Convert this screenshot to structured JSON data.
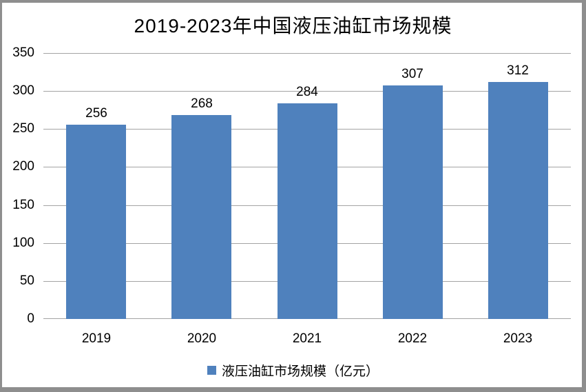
{
  "title": "2019-2023年中国液压油缸市场规模",
  "legend": {
    "label": "液压油缸市场规模（亿元）"
  },
  "colors": {
    "bar": "#4F81BD",
    "gridline": "#a3a3a3",
    "frame": "#8e8e8e",
    "text": "#000000",
    "background": "#ffffff"
  },
  "chart_data": {
    "type": "bar",
    "title": "2019-2023年中国液压油缸市场规模",
    "categories": [
      "2019",
      "2020",
      "2021",
      "2022",
      "2023"
    ],
    "series": [
      {
        "name": "液压油缸市场规模（亿元）",
        "values": [
          256,
          268,
          284,
          307,
          312
        ]
      }
    ],
    "data_labels": [
      256,
      268,
      284,
      307,
      312
    ],
    "xlabel": "",
    "ylabel": "",
    "ylim": [
      0,
      350
    ],
    "yticks": [
      0,
      50,
      100,
      150,
      200,
      250,
      300,
      350
    ],
    "grid": true,
    "legend_position": "bottom",
    "bar_color": "#4F81BD"
  }
}
